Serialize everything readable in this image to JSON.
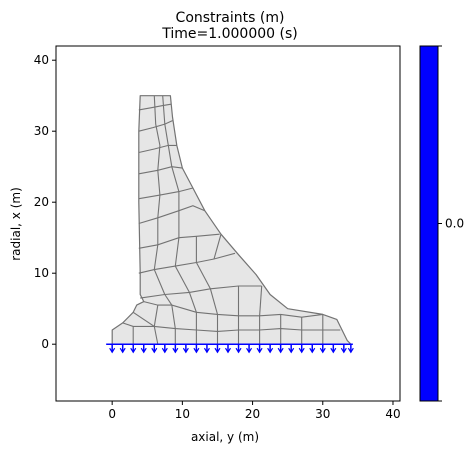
{
  "chart_data": {
    "type": "mesh",
    "title_line1": "Constraints  (m)",
    "title_line2": "Time=1.000000 (s)",
    "xlabel": "axial, y (m)",
    "ylabel": "radial, x (m)",
    "xlim": [
      -8,
      41
    ],
    "ylim": [
      -8,
      42
    ],
    "x_ticks": [
      "0",
      "10",
      "20",
      "30",
      "40"
    ],
    "y_ticks": [
      "0",
      "10",
      "20",
      "30",
      "40"
    ],
    "x_tick_values": [
      0,
      10,
      20,
      30,
      40
    ],
    "y_tick_values": [
      0,
      10,
      20,
      30,
      40
    ],
    "colorbar": {
      "label": "0.0",
      "color": "#0000ff"
    },
    "mesh_fill": "#e6e6e6",
    "mesh_edge": "#737373",
    "constraint_color": "#0000ff",
    "boundary_outline": [
      [
        0,
        0
      ],
      [
        0,
        2
      ],
      [
        1.5,
        3
      ],
      [
        3,
        4.5
      ],
      [
        3.5,
        5.5
      ],
      [
        4.5,
        6
      ],
      [
        4,
        7
      ],
      [
        4,
        10
      ],
      [
        3.8,
        20
      ],
      [
        3.8,
        30
      ],
      [
        4,
        35
      ],
      [
        8.3,
        35
      ],
      [
        8.6,
        32
      ],
      [
        9.2,
        28
      ],
      [
        10,
        24.8
      ],
      [
        11.5,
        22
      ],
      [
        13.2,
        18.8
      ],
      [
        15.5,
        15.5
      ],
      [
        18,
        12.6
      ],
      [
        20.5,
        9.8
      ],
      [
        22.5,
        7
      ],
      [
        25,
        5
      ],
      [
        30,
        4.2
      ],
      [
        32,
        3.5
      ],
      [
        33.5,
        0.5
      ],
      [
        34,
        0
      ]
    ],
    "mesh_lines": [
      [
        [
          4,
          6.5
        ],
        [
          7.5,
          7
        ],
        [
          11,
          7.3
        ],
        [
          14,
          7.8
        ],
        [
          18,
          8.2
        ],
        [
          21.3,
          8.2
        ]
      ],
      [
        [
          3.8,
          10
        ],
        [
          6,
          10.5
        ],
        [
          9,
          11
        ],
        [
          12,
          11.5
        ],
        [
          14.5,
          12
        ],
        [
          17.5,
          12.8
        ]
      ],
      [
        [
          3.8,
          13.5
        ],
        [
          6.5,
          14
        ],
        [
          9.5,
          15
        ],
        [
          12,
          15.2
        ],
        [
          15.3,
          15.5
        ]
      ],
      [
        [
          3.8,
          17
        ],
        [
          6.5,
          17.8
        ],
        [
          9.5,
          18.8
        ],
        [
          11.5,
          19.5
        ],
        [
          13.2,
          18.8
        ]
      ],
      [
        [
          3.8,
          20.5
        ],
        [
          6.8,
          21
        ],
        [
          9.5,
          21.5
        ],
        [
          11.5,
          22
        ]
      ],
      [
        [
          3.8,
          24
        ],
        [
          6.5,
          24.5
        ],
        [
          8.5,
          25
        ],
        [
          10,
          24.8
        ]
      ],
      [
        [
          3.8,
          27
        ],
        [
          6,
          27.5
        ],
        [
          8,
          28
        ],
        [
          9.2,
          28
        ]
      ],
      [
        [
          3.8,
          30
        ],
        [
          5.8,
          30.5
        ],
        [
          7.5,
          31
        ],
        [
          8.6,
          31.5
        ]
      ],
      [
        [
          3.8,
          33
        ],
        [
          5.5,
          33.3
        ],
        [
          7.2,
          33.6
        ],
        [
          8.4,
          33.8
        ]
      ],
      [
        [
          6,
          35
        ],
        [
          6.2,
          31
        ],
        [
          6.8,
          28
        ],
        [
          6.5,
          24.5
        ],
        [
          6.8,
          21
        ],
        [
          6.5,
          17.8
        ],
        [
          6.5,
          14
        ],
        [
          6,
          10.5
        ],
        [
          7.5,
          7
        ]
      ],
      [
        [
          7.2,
          35
        ],
        [
          7.5,
          31
        ],
        [
          8,
          28
        ],
        [
          8.5,
          25
        ],
        [
          9.5,
          21.5
        ],
        [
          9.5,
          18.8
        ],
        [
          9.5,
          15
        ],
        [
          9,
          11
        ],
        [
          11,
          7.3
        ]
      ],
      [
        [
          12,
          15.2
        ],
        [
          12,
          11.5
        ],
        [
          14,
          7.8
        ]
      ],
      [
        [
          14.5,
          12
        ],
        [
          15.5,
          15.5
        ]
      ],
      [
        [
          4.5,
          6
        ],
        [
          6.5,
          5.5
        ],
        [
          8.5,
          5.5
        ],
        [
          12,
          4.5
        ],
        [
          15,
          4.2
        ],
        [
          18,
          4
        ],
        [
          21,
          4
        ],
        [
          24,
          4.2
        ],
        [
          27,
          3.8
        ],
        [
          30,
          4.2
        ]
      ],
      [
        [
          1.5,
          3
        ],
        [
          3,
          2.5
        ],
        [
          6,
          2.5
        ],
        [
          9,
          2.2
        ],
        [
          12,
          2
        ],
        [
          15,
          1.8
        ],
        [
          18,
          2
        ],
        [
          21,
          2
        ],
        [
          24,
          2.2
        ],
        [
          27,
          2
        ],
        [
          30,
          2
        ],
        [
          32.5,
          2
        ]
      ],
      [
        [
          3,
          4.5
        ],
        [
          4.5,
          3.5
        ],
        [
          6,
          2.5
        ],
        [
          6.5,
          0
        ]
      ],
      [
        [
          6.5,
          5.5
        ],
        [
          6,
          2.5
        ]
      ],
      [
        [
          8.5,
          5.5
        ],
        [
          9,
          2.2
        ],
        [
          9,
          0
        ]
      ],
      [
        [
          12,
          4.5
        ],
        [
          12,
          2
        ],
        [
          12,
          0
        ]
      ],
      [
        [
          15,
          4.2
        ],
        [
          15,
          1.8
        ],
        [
          15,
          0
        ]
      ],
      [
        [
          18,
          4
        ],
        [
          18,
          2
        ],
        [
          18,
          0
        ]
      ],
      [
        [
          21,
          4
        ],
        [
          21,
          2
        ],
        [
          21,
          0
        ]
      ],
      [
        [
          24,
          4.2
        ],
        [
          24,
          2.2
        ],
        [
          24,
          0
        ]
      ],
      [
        [
          27,
          3.8
        ],
        [
          27,
          2
        ],
        [
          27,
          0
        ]
      ],
      [
        [
          30,
          4.2
        ],
        [
          30,
          2
        ],
        [
          30,
          0
        ]
      ],
      [
        [
          3,
          2.5
        ],
        [
          3,
          0
        ]
      ],
      [
        [
          18,
          8.2
        ],
        [
          18,
          4
        ]
      ],
      [
        [
          21.3,
          8.2
        ],
        [
          21,
          4
        ]
      ],
      [
        [
          14,
          7.8
        ],
        [
          15,
          4.2
        ]
      ],
      [
        [
          11,
          7.3
        ],
        [
          12,
          4.5
        ]
      ],
      [
        [
          7.5,
          7
        ],
        [
          8.5,
          5.5
        ]
      ]
    ],
    "constraint_y_values": [
      0,
      1.5,
      3,
      4.5,
      6,
      7.5,
      9,
      10.5,
      12,
      13.5,
      15,
      16.5,
      18,
      19.5,
      21,
      22.5,
      24,
      25.5,
      27,
      28.5,
      30,
      31.5,
      33,
      34
    ]
  }
}
